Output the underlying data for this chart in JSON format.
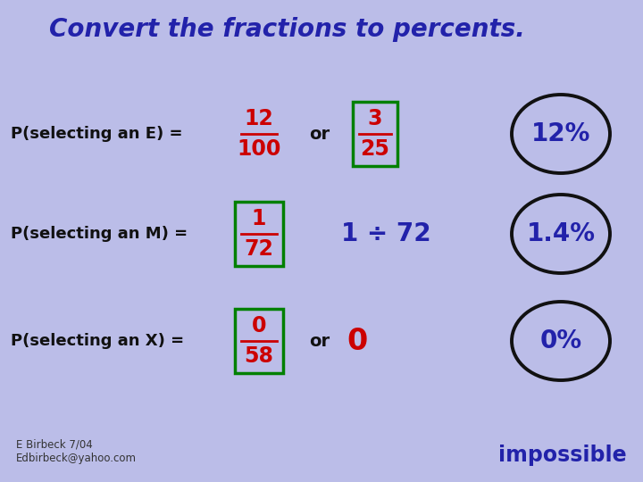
{
  "bg_color": "#bbbde8",
  "title": "Convert the fractions to percents.",
  "title_color": "#2222aa",
  "title_fontsize": 20,
  "title_italic": false,
  "rows": [
    {
      "label": "P(selecting an E) =",
      "frac_num": "12",
      "frac_den": "100",
      "frac_has_box": false,
      "middle_text": "or",
      "frac2_num": "3",
      "frac2_den": "25",
      "has_frac2": true,
      "answer": "12%",
      "answer_color": "#2222aa",
      "frac_color": "#cc0000",
      "extra_text": null,
      "extra_color": null,
      "middle_color": "#111111",
      "middle_fontsize": 14
    },
    {
      "label": "P(selecting an M) =",
      "frac_num": "1",
      "frac_den": "72",
      "frac_has_box": true,
      "middle_text": "1 ÷ 72",
      "frac2_num": null,
      "frac2_den": null,
      "has_frac2": false,
      "answer": "1.4%",
      "answer_color": "#2222aa",
      "frac_color": "#cc0000",
      "extra_text": null,
      "extra_color": null,
      "middle_color": "#2222aa",
      "middle_fontsize": 20
    },
    {
      "label": "P(selecting an X) =",
      "frac_num": "0",
      "frac_den": "58",
      "frac_has_box": true,
      "middle_text": "or",
      "frac2_num": null,
      "frac2_den": null,
      "has_frac2": false,
      "answer": "0%",
      "answer_color": "#2222aa",
      "frac_color": "#cc0000",
      "extra_text": "0",
      "extra_color": "#cc0000",
      "middle_color": "#111111",
      "middle_fontsize": 14
    }
  ],
  "footer_line1": "E Birbeck 7/04",
  "footer_line2": "Edbirbeck@yahoo.com",
  "footer_color": "#333333",
  "impossible_text": "impossible",
  "impossible_color": "#2222aa"
}
